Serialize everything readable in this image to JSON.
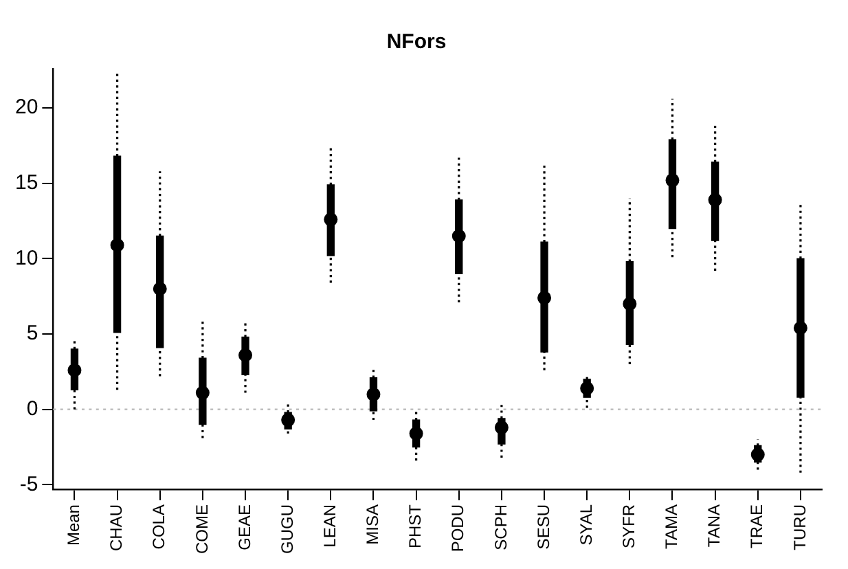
{
  "chart_data": {
    "type": "box",
    "title": "NFors",
    "categories": [
      "Mean",
      "CHAU",
      "COLA",
      "COME",
      "GEAE",
      "GUGU",
      "LEAN",
      "MISA",
      "PHST",
      "PODU",
      "SCPH",
      "SESU",
      "SYAL",
      "SYFR",
      "TAMA",
      "TANA",
      "TRAE",
      "TURU"
    ],
    "color": "#000000",
    "boxes": [
      {
        "low": 0,
        "q1": 1.3,
        "median": 2.6,
        "q3": 4.0,
        "high": 4.7
      },
      {
        "low": 1.3,
        "q1": 5.1,
        "median": 10.9,
        "q3": 16.8,
        "high": 22.4
      },
      {
        "low": 2.2,
        "q1": 4.1,
        "median": 8.0,
        "q3": 11.5,
        "high": 15.8
      },
      {
        "low": -1.9,
        "q1": -1.0,
        "median": 1.1,
        "q3": 3.4,
        "high": 5.9
      },
      {
        "low": 1.1,
        "q1": 2.3,
        "median": 3.6,
        "q3": 4.8,
        "high": 5.8
      },
      {
        "low": -1.6,
        "q1": -1.3,
        "median": -0.7,
        "q3": -0.2,
        "high": 0.4
      },
      {
        "low": 8.4,
        "q1": 10.2,
        "median": 12.6,
        "q3": 14.9,
        "high": 17.5
      },
      {
        "low": -0.7,
        "q1": -0.1,
        "median": 1.0,
        "q3": 2.1,
        "high": 2.7
      },
      {
        "low": -3.4,
        "q1": -2.5,
        "median": -1.6,
        "q3": -0.7,
        "high": -0.1
      },
      {
        "low": 7.1,
        "q1": 9.0,
        "median": 11.5,
        "q3": 13.9,
        "high": 16.8
      },
      {
        "low": -3.2,
        "q1": -2.3,
        "median": -1.2,
        "q3": -0.6,
        "high": 0.3
      },
      {
        "low": 2.6,
        "q1": 3.8,
        "median": 7.4,
        "q3": 11.1,
        "high": 16.2
      },
      {
        "low": 0.1,
        "q1": 0.8,
        "median": 1.4,
        "q3": 2.0,
        "high": 2.3
      },
      {
        "low": 3.0,
        "q1": 4.3,
        "median": 7.0,
        "q3": 9.8,
        "high": 14.0
      },
      {
        "low": 10.1,
        "q1": 12.0,
        "median": 15.2,
        "q3": 17.9,
        "high": 20.6
      },
      {
        "low": 9.2,
        "q1": 11.2,
        "median": 13.9,
        "q3": 16.4,
        "high": 19.0
      },
      {
        "low": -4.0,
        "q1": -3.5,
        "median": -3.0,
        "q3": -2.4,
        "high": -2.0
      },
      {
        "low": -4.2,
        "q1": 0.8,
        "median": 5.4,
        "q3": 10.0,
        "high": 13.7
      }
    ],
    "ylim": [
      -5.3,
      22.6
    ],
    "yticks": [
      -5,
      0,
      5,
      10,
      15,
      20
    ],
    "ref_lines": [
      {
        "axis": "y",
        "value": 0,
        "color": "#bebebe",
        "line_style": "dotted"
      }
    ]
  }
}
